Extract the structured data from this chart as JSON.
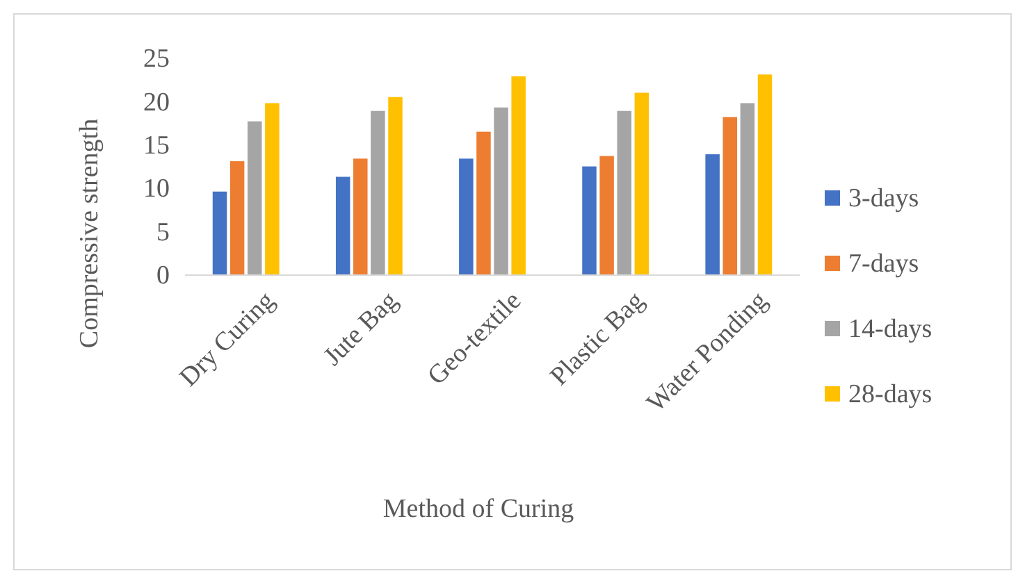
{
  "chart_data": {
    "type": "bar",
    "xlabel": "Method of Curing",
    "ylabel": "Compressive strength",
    "categories": [
      "Dry Curing",
      "Jute Bag",
      "Geo-textile",
      "Plastic Bag",
      "Water Ponding"
    ],
    "series": [
      {
        "name": "3-days",
        "color": "#4472c4",
        "values": [
          9.7,
          11.4,
          13.5,
          12.6,
          14.0
        ]
      },
      {
        "name": "7-days",
        "color": "#ed7d31",
        "values": [
          13.2,
          13.5,
          16.6,
          13.8,
          18.3
        ]
      },
      {
        "name": "14-days",
        "color": "#a5a5a5",
        "values": [
          17.8,
          19.0,
          19.4,
          19.0,
          19.9
        ]
      },
      {
        "name": "28-days",
        "color": "#ffc000",
        "values": [
          19.9,
          20.6,
          23.0,
          21.1,
          23.2
        ]
      }
    ],
    "ylim": [
      0,
      25
    ],
    "yticks": [
      0,
      5,
      10,
      15,
      20,
      25
    ],
    "grid": false,
    "legend": "right"
  }
}
